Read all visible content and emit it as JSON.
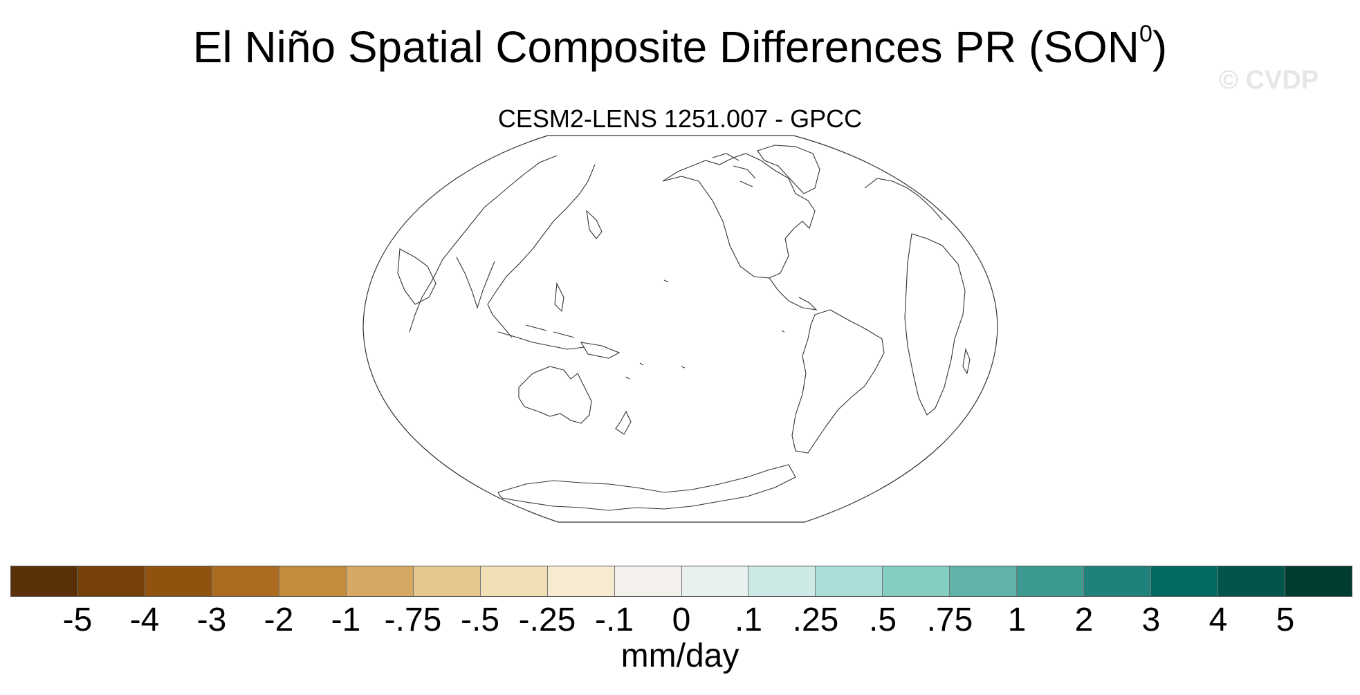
{
  "title": {
    "main": "El Niño Spatial Composite Differences PR (SON",
    "superscript": "0",
    "close": ")"
  },
  "watermark": "© CVDP",
  "subtitle": "CESM2-LENS 1251.007 - GPCC",
  "colorbar": {
    "colors": [
      "#5a3008",
      "#754109",
      "#8f520f",
      "#ab6b21",
      "#c58b3c",
      "#d6a962",
      "#e6c88f",
      "#f1dfb5",
      "#f6ebd1",
      "#f4f1ec",
      "#e8f1f0",
      "#cce9e6",
      "#aadfd9",
      "#83cdc1",
      "#5fb3a8",
      "#3d9a90",
      "#20807a",
      "#016b62",
      "#03554b",
      "#013c30"
    ],
    "labels": [
      "-5",
      "-4",
      "-3",
      "-2",
      "-1",
      "-.75",
      "-.5",
      "-.25",
      "-.1",
      "0",
      ".1",
      ".25",
      ".5",
      ".75",
      "1",
      "2",
      "3",
      "4",
      "5"
    ],
    "units": "mm/day"
  }
}
